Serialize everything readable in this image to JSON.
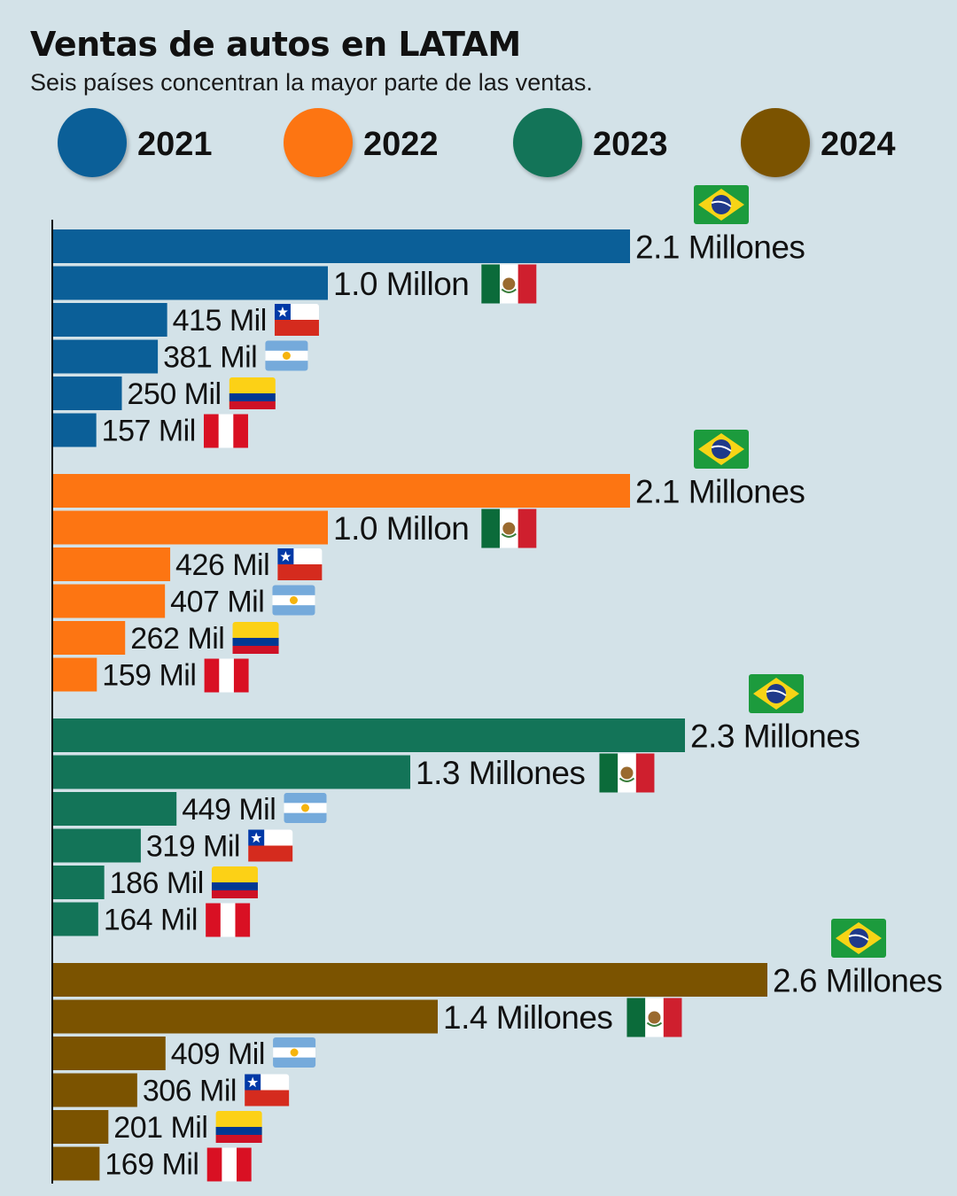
{
  "title": "Ventas de autos en LATAM",
  "subtitle": "Seis países concentran la mayor parte de las ventas.",
  "chart_data": {
    "type": "bar",
    "orientation": "horizontal",
    "title": "Ventas de autos en LATAM",
    "subtitle": "Seis países concentran la mayor parte de las ventas.",
    "legend": [
      {
        "label": "2021",
        "color": "#0b5f98"
      },
      {
        "label": "2022",
        "color": "#fd7512"
      },
      {
        "label": "2023",
        "color": "#137458"
      },
      {
        "label": "2024",
        "color": "#7b5300"
      }
    ],
    "legend_placement": "top",
    "grid": false,
    "series": [
      {
        "name": "2021",
        "color": "#0b5f98",
        "bars": [
          {
            "country": "Brasil",
            "flag": "brazil-flag",
            "value": 2100000,
            "label": "2.1 Millones"
          },
          {
            "country": "México",
            "flag": "mexico-flag",
            "value": 1000000,
            "label": "1.0 Millon"
          },
          {
            "country": "Chile",
            "flag": "chile-flag",
            "value": 415000,
            "label": "415 Mil"
          },
          {
            "country": "Argentina",
            "flag": "argentina-flag",
            "value": 381000,
            "label": "381 Mil"
          },
          {
            "country": "Colombia",
            "flag": "colombia-flag",
            "value": 250000,
            "label": "250 Mil"
          },
          {
            "country": "Perú",
            "flag": "peru-flag",
            "value": 157000,
            "label": "157 Mil"
          }
        ]
      },
      {
        "name": "2022",
        "color": "#fd7512",
        "bars": [
          {
            "country": "Brasil",
            "flag": "brazil-flag",
            "value": 2100000,
            "label": "2.1 Millones"
          },
          {
            "country": "México",
            "flag": "mexico-flag",
            "value": 1000000,
            "label": "1.0 Millon"
          },
          {
            "country": "Chile",
            "flag": "chile-flag",
            "value": 426000,
            "label": "426 Mil"
          },
          {
            "country": "Argentina",
            "flag": "argentina-flag",
            "value": 407000,
            "label": "407 Mil"
          },
          {
            "country": "Colombia",
            "flag": "colombia-flag",
            "value": 262000,
            "label": "262 Mil"
          },
          {
            "country": "Perú",
            "flag": "peru-flag",
            "value": 159000,
            "label": "159 Mil"
          }
        ]
      },
      {
        "name": "2023",
        "color": "#137458",
        "bars": [
          {
            "country": "Brasil",
            "flag": "brazil-flag",
            "value": 2300000,
            "label": "2.3 Millones"
          },
          {
            "country": "México",
            "flag": "mexico-flag",
            "value": 1300000,
            "label": "1.3 Millones"
          },
          {
            "country": "Argentina",
            "flag": "argentina-flag",
            "value": 449000,
            "label": "449 Mil"
          },
          {
            "country": "Chile",
            "flag": "chile-flag",
            "value": 319000,
            "label": "319 Mil"
          },
          {
            "country": "Colombia",
            "flag": "colombia-flag",
            "value": 186000,
            "label": "186 Mil"
          },
          {
            "country": "Perú",
            "flag": "peru-flag",
            "value": 164000,
            "label": "164 Mil"
          }
        ]
      },
      {
        "name": "2024",
        "color": "#7b5300",
        "bars": [
          {
            "country": "Brasil",
            "flag": "brazil-flag",
            "value": 2600000,
            "label": "2.6 Millones"
          },
          {
            "country": "México",
            "flag": "mexico-flag",
            "value": 1400000,
            "label": "1.4 Millones"
          },
          {
            "country": "Argentina",
            "flag": "argentina-flag",
            "value": 409000,
            "label": "409 Mil"
          },
          {
            "country": "Chile",
            "flag": "chile-flag",
            "value": 306000,
            "label": "306 Mil"
          },
          {
            "country": "Colombia",
            "flag": "colombia-flag",
            "value": 201000,
            "label": "201 Mil"
          },
          {
            "country": "Perú",
            "flag": "peru-flag",
            "value": 169000,
            "label": "169 Mil"
          }
        ]
      }
    ]
  }
}
